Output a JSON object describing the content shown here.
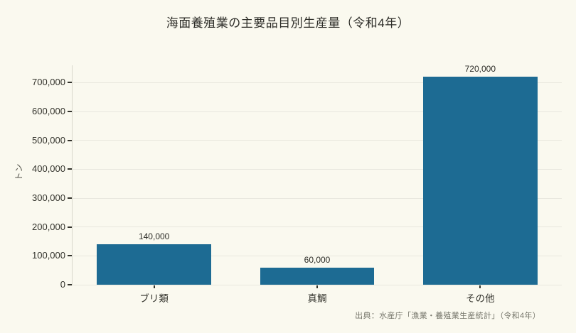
{
  "title": "海面養殖業の主要品目別生産量（令和4年）",
  "source": "出典：水産庁「漁業・養殖業生産統計」（令和4年）",
  "chart_data": {
    "type": "bar",
    "title": "海面養殖業の主要品目別生産量（令和4年）",
    "categories": [
      "ブリ類",
      "真鯛",
      "その他"
    ],
    "values": [
      140000,
      60000,
      720000
    ],
    "value_labels": [
      "140,000",
      "60,000",
      "720,000"
    ],
    "xlabel": "",
    "ylabel": "トン",
    "ylim": [
      0,
      760000
    ],
    "yticks": [
      0,
      100000,
      200000,
      300000,
      400000,
      500000,
      600000,
      700000
    ],
    "ytick_labels": [
      "0",
      "100,000",
      "200,000",
      "300,000",
      "400,000",
      "500,000",
      "600,000",
      "700,000"
    ],
    "grid": "horizontal-only",
    "legend": "none",
    "bar_width_ratio": 0.7,
    "colors": {
      "bar": "#1d6b93",
      "background": "#faf9ef",
      "gridline": "#e8e7de",
      "axis_spine": "#d9d8cd",
      "tick": "#33332c",
      "text": "#33332c",
      "title_text": "#2c2c27",
      "source_text": "#77776c"
    }
  }
}
